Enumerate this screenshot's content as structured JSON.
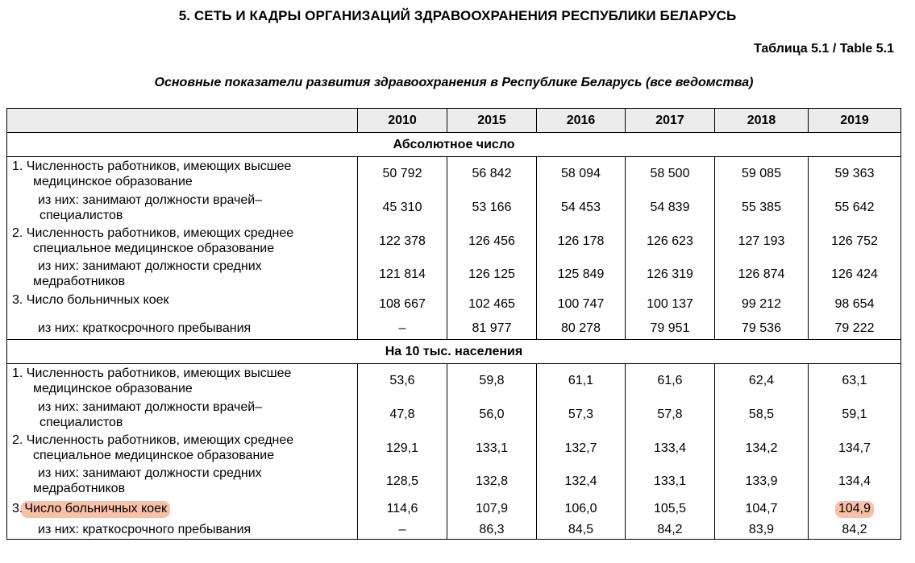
{
  "document": {
    "heading": "5. СЕТЬ И КАДРЫ ОРГАНИЗАЦИЙ ЗДРАВООХРАНЕНИЯ РЕСПУБЛИКИ БЕЛАРУСЬ",
    "table_number": "Таблица 5.1 / Table 5.1",
    "subtitle": "Основные показатели развития здравоохранения в Республике Беларусь (все ведомства)"
  },
  "table": {
    "years": [
      "2010",
      "2015",
      "2016",
      "2017",
      "2018",
      "2019"
    ],
    "sections": [
      {
        "title": "Абсолютное число",
        "rows": [
          {
            "label_line1": "1. Численность работников, имеющих высшее",
            "label_line2": "медицинское образование",
            "values": [
              "50 792",
              "56 842",
              "58 094",
              "58 500",
              "59 085",
              "59 363"
            ]
          },
          {
            "label_line1": "из них: занимают должности врачей–",
            "label_line2": "специалистов",
            "values": [
              "45 310",
              "53 166",
              "54 453",
              "54 839",
              "55 385",
              "55 642"
            ]
          },
          {
            "label_line1": "2. Численность работников, имеющих среднее",
            "label_line2": "специальное медицинское образование",
            "values": [
              "122 378",
              "126 456",
              "126 178",
              "126 623",
              "127 193",
              "126 752"
            ]
          },
          {
            "label_line1": "из них: занимают должности средних",
            "label_line2": "медработников",
            "values": [
              "121 814",
              "126 125",
              "125 849",
              "126 319",
              "126 874",
              "126 424"
            ]
          },
          {
            "label_line1": "3. Число больничных коек",
            "label_line2": "",
            "values": [
              "108 667",
              "102 465",
              "100 747",
              "100 137",
              "99 212",
              "98 654"
            ]
          },
          {
            "label_line1": "из них: краткосрочного пребывания",
            "label_line2": "",
            "values": [
              "–",
              "81 977",
              "80 278",
              "79 951",
              "79 536",
              "79 222"
            ]
          }
        ]
      },
      {
        "title": "На 10 тыс. населения",
        "rows": [
          {
            "label_line1": "1. Численность работников, имеющих высшее",
            "label_line2": "медицинское образование",
            "values": [
              "53,6",
              "59,8",
              "61,1",
              "61,6",
              "62,4",
              "63,1"
            ]
          },
          {
            "label_line1": "из них: занимают должности врачей–",
            "label_line2": "специалистов",
            "values": [
              "47,8",
              "56,0",
              "57,3",
              "57,8",
              "58,5",
              "59,1"
            ]
          },
          {
            "label_line1": "2. Численность работников, имеющих среднее",
            "label_line2": "специальное медицинское образование",
            "values": [
              "129,1",
              "133,1",
              "132,7",
              "133,4",
              "134,2",
              "134,7"
            ]
          },
          {
            "label_line1": "из них: занимают должности средних",
            "label_line2": "медработников",
            "values": [
              "128,5",
              "132,8",
              "132,4",
              "133,1",
              "133,9",
              "134,4"
            ]
          },
          {
            "label_prefix": "3.",
            "label_highlighted": "Число больничных коек",
            "values": [
              "114,6",
              "107,9",
              "106,0",
              "105,5",
              "104,7",
              "104,9"
            ]
          },
          {
            "label_line1": "из них: краткосрочного пребывания",
            "label_line2": "",
            "values": [
              "–",
              "86,3",
              "84,5",
              "84,2",
              "83,9",
              "84,2"
            ]
          }
        ]
      }
    ]
  },
  "highlight": {
    "color": "#f68c5f"
  }
}
